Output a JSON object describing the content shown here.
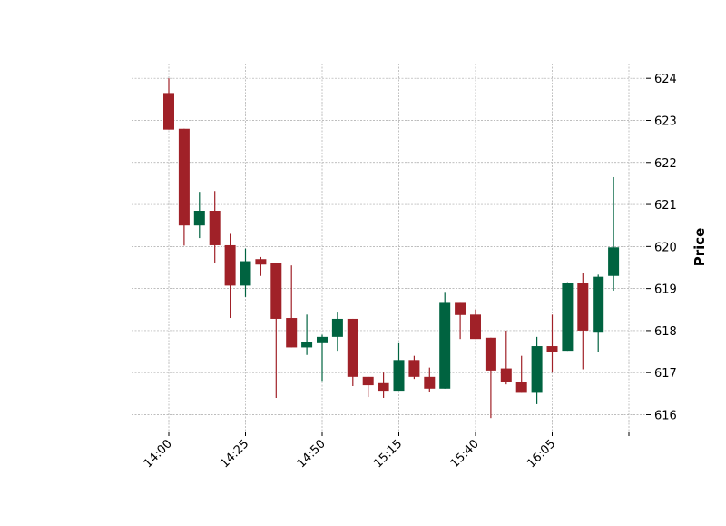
{
  "chart_data": {
    "type": "candlestick",
    "ylabel": "Price",
    "ylim": [
      615.6,
      624.35
    ],
    "y_axis_position": "right",
    "grid": true,
    "up_color": "#006340",
    "down_color": "#a02128",
    "x_tick_labels": [
      "14:00",
      "14:25",
      "14:50",
      "15:15",
      "15:40",
      "16:05",
      ""
    ],
    "x_tick_every": 5,
    "y_ticks": [
      616,
      617,
      618,
      619,
      620,
      621,
      622,
      623,
      624
    ],
    "candles": [
      {
        "t": "14:00",
        "open": 623.65,
        "high": 624.0,
        "low": 622.78,
        "close": 622.78
      },
      {
        "t": "14:05",
        "open": 622.8,
        "high": 622.8,
        "low": 620.02,
        "close": 620.5
      },
      {
        "t": "14:10",
        "open": 620.5,
        "high": 621.3,
        "low": 620.2,
        "close": 620.85
      },
      {
        "t": "14:15",
        "open": 620.85,
        "high": 621.32,
        "low": 619.6,
        "close": 620.03
      },
      {
        "t": "14:20",
        "open": 620.03,
        "high": 620.3,
        "low": 618.3,
        "close": 619.07
      },
      {
        "t": "14:25",
        "open": 619.07,
        "high": 619.95,
        "low": 618.8,
        "close": 619.65
      },
      {
        "t": "14:30",
        "open": 619.7,
        "high": 619.75,
        "low": 619.3,
        "close": 619.57
      },
      {
        "t": "14:35",
        "open": 619.6,
        "high": 619.6,
        "low": 616.4,
        "close": 618.28
      },
      {
        "t": "14:40",
        "open": 618.3,
        "high": 619.55,
        "low": 617.6,
        "close": 617.6
      },
      {
        "t": "14:45",
        "open": 617.6,
        "high": 618.38,
        "low": 617.42,
        "close": 617.72
      },
      {
        "t": "14:50",
        "open": 617.7,
        "high": 617.9,
        "low": 616.8,
        "close": 617.85
      },
      {
        "t": "14:55",
        "open": 617.85,
        "high": 618.45,
        "low": 617.52,
        "close": 618.28
      },
      {
        "t": "15:00",
        "open": 618.28,
        "high": 618.28,
        "low": 616.68,
        "close": 616.9
      },
      {
        "t": "15:05",
        "open": 616.9,
        "high": 616.9,
        "low": 616.42,
        "close": 616.7
      },
      {
        "t": "15:10",
        "open": 616.75,
        "high": 617.0,
        "low": 616.4,
        "close": 616.57
      },
      {
        "t": "15:15",
        "open": 616.57,
        "high": 617.7,
        "low": 616.57,
        "close": 617.3
      },
      {
        "t": "15:20",
        "open": 617.3,
        "high": 617.4,
        "low": 616.85,
        "close": 616.9
      },
      {
        "t": "15:25",
        "open": 616.9,
        "high": 617.12,
        "low": 616.55,
        "close": 616.62
      },
      {
        "t": "15:30",
        "open": 616.62,
        "high": 618.92,
        "low": 616.62,
        "close": 618.68
      },
      {
        "t": "15:35",
        "open": 618.68,
        "high": 618.68,
        "low": 617.8,
        "close": 618.37
      },
      {
        "t": "15:40",
        "open": 618.38,
        "high": 618.5,
        "low": 617.8,
        "close": 617.8
      },
      {
        "t": "15:45",
        "open": 617.83,
        "high": 617.83,
        "low": 615.92,
        "close": 617.05
      },
      {
        "t": "15:50",
        "open": 617.1,
        "high": 618.0,
        "low": 616.72,
        "close": 616.77
      },
      {
        "t": "15:55",
        "open": 616.77,
        "high": 617.4,
        "low": 616.52,
        "close": 616.52
      },
      {
        "t": "16:00",
        "open": 616.52,
        "high": 617.85,
        "low": 616.25,
        "close": 617.63
      },
      {
        "t": "16:05",
        "open": 617.63,
        "high": 618.38,
        "low": 617.0,
        "close": 617.5
      },
      {
        "t": "16:10",
        "open": 617.52,
        "high": 619.15,
        "low": 617.52,
        "close": 619.13
      },
      {
        "t": "16:15",
        "open": 619.13,
        "high": 619.38,
        "low": 617.08,
        "close": 618.0
      },
      {
        "t": "16:20",
        "open": 617.95,
        "high": 619.33,
        "low": 617.5,
        "close": 619.28
      },
      {
        "t": "16:25",
        "open": 619.3,
        "high": 621.65,
        "low": 618.95,
        "close": 619.98
      }
    ]
  }
}
